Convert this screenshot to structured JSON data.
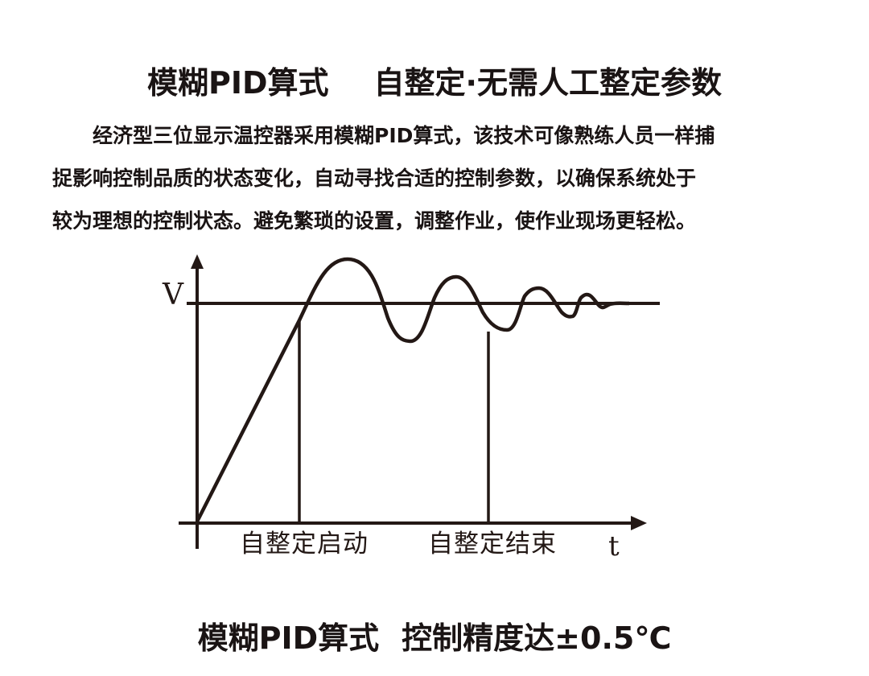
{
  "title": {
    "left": "模糊PID算式",
    "right": "自整定·无需人工整定参数"
  },
  "paragraph": [
    "经济型三位显示温控器采用模糊PID算式，该技术可像熟练人员一样捕",
    "捉影响控制品质的状态变化，自动寻找合适的控制参数，以确保系统处于",
    "较为理想的控制状态。避免繁琐的设置，调整作业，使作业现场更轻松。"
  ],
  "diagram": {
    "y_label": "V",
    "x_label": "t",
    "marker_start": "自整定启动",
    "marker_end": "自整定结束",
    "line_color": "#231815"
  },
  "bottom": {
    "left": "模糊PID算式",
    "right": "控制精度达±0.5℃"
  }
}
